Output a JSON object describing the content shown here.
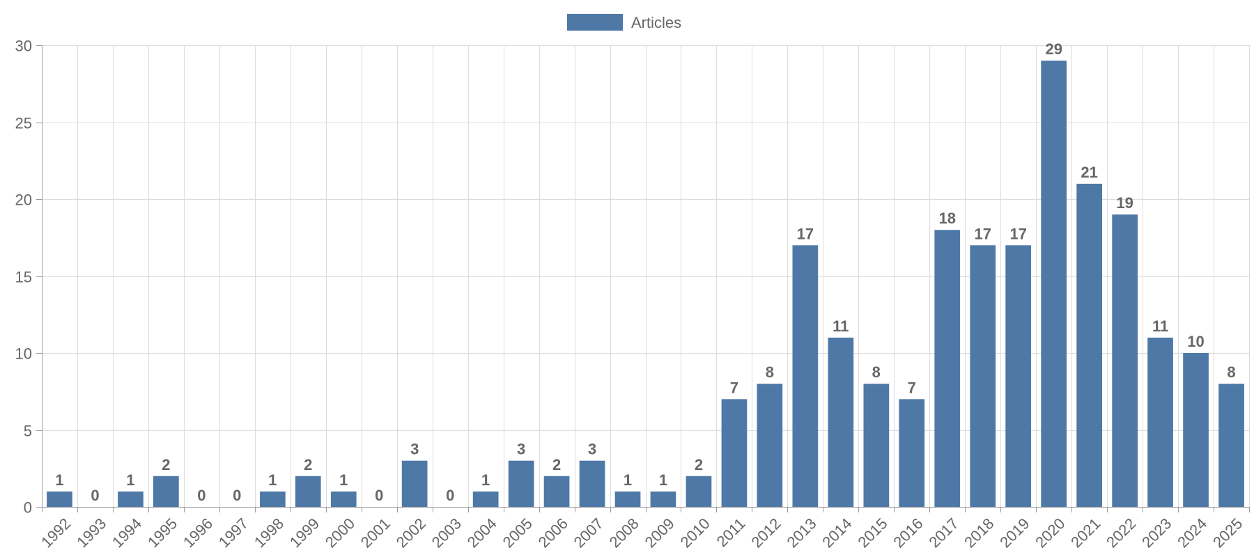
{
  "chart_data": {
    "type": "bar",
    "categories": [
      "1992",
      "1993",
      "1994",
      "1995",
      "1996",
      "1997",
      "1998",
      "1999",
      "2000",
      "2001",
      "2002",
      "2003",
      "2004",
      "2005",
      "2006",
      "2007",
      "2008",
      "2009",
      "2010",
      "2011",
      "2012",
      "2013",
      "2014",
      "2015",
      "2016",
      "2017",
      "2018",
      "2019",
      "2020",
      "2021",
      "2022",
      "2023",
      "2024",
      "2025"
    ],
    "series": [
      {
        "name": "Articles",
        "color": "#4e79a7",
        "values": [
          1,
          0,
          1,
          2,
          0,
          0,
          1,
          2,
          1,
          0,
          3,
          0,
          1,
          3,
          2,
          3,
          1,
          1,
          2,
          7,
          8,
          17,
          11,
          8,
          7,
          18,
          17,
          17,
          29,
          21,
          19,
          11,
          10,
          8
        ]
      }
    ],
    "title": "",
    "xlabel": "",
    "ylabel": "",
    "ylim": [
      0,
      30
    ],
    "yticks": [
      0,
      5,
      10,
      15,
      20,
      25,
      30
    ],
    "grid": true,
    "legend_position": "top-center",
    "data_labels": true,
    "x_tick_rotation": -45
  }
}
